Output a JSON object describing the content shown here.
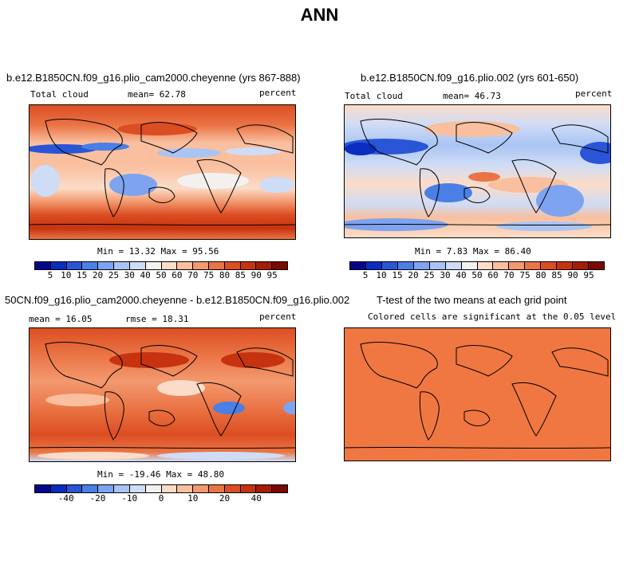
{
  "title": "ANN",
  "panels": [
    {
      "title": "b.e12.B1850CN.f09_g16.plio_cam2000.cheyenne (yrs 867-888)",
      "left_label": "Total cloud",
      "center_label": "mean=  62.78",
      "right_label": "percent",
      "min_max": "Min =  13.32 Max =  95.56",
      "colorbar_ticks": [
        "5",
        "10",
        "15",
        "20",
        "25",
        "30",
        "40",
        "50",
        "60",
        "70",
        "75",
        "80",
        "85",
        "90",
        "95"
      ]
    },
    {
      "title": "b.e12.B1850CN.f09_g16.plio.002 (yrs 601-650)",
      "left_label": "Total cloud",
      "center_label": "mean=  46.73",
      "right_label": "percent",
      "min_max": "Min =   7.83 Max =  86.40",
      "colorbar_ticks": [
        "5",
        "10",
        "15",
        "20",
        "25",
        "30",
        "40",
        "50",
        "60",
        "70",
        "75",
        "80",
        "85",
        "90",
        "95"
      ]
    },
    {
      "title": "50CN.f09_g16.plio_cam2000.cheyenne - b.e12.B1850CN.f09_g16.plio.002",
      "left_label": "mean =  16.05",
      "center_label": "rmse =  18.31",
      "right_label": "percent",
      "min_max": "Min = -19.46 Max =  48.80",
      "colorbar_ticks": [
        "-40",
        "-20",
        "-10",
        "0",
        "10",
        "20",
        "40"
      ]
    },
    {
      "title": "T-test of the two means at each grid point",
      "subtitle": "Colored cells are significant at the 0.05 level"
    }
  ],
  "colors": {
    "scale": [
      "#06068c",
      "#0a2dbf",
      "#2a55d6",
      "#4a7fe6",
      "#7ea3f0",
      "#a9c4f4",
      "#cfdcf6",
      "#f3f1f0",
      "#fbdcc8",
      "#f9bf9e",
      "#f3996f",
      "#ea7445",
      "#dc4e22",
      "#c7330f",
      "#a51d06",
      "#7a0a02"
    ],
    "ttest_fill": "#f07741",
    "coast": "#000000"
  }
}
